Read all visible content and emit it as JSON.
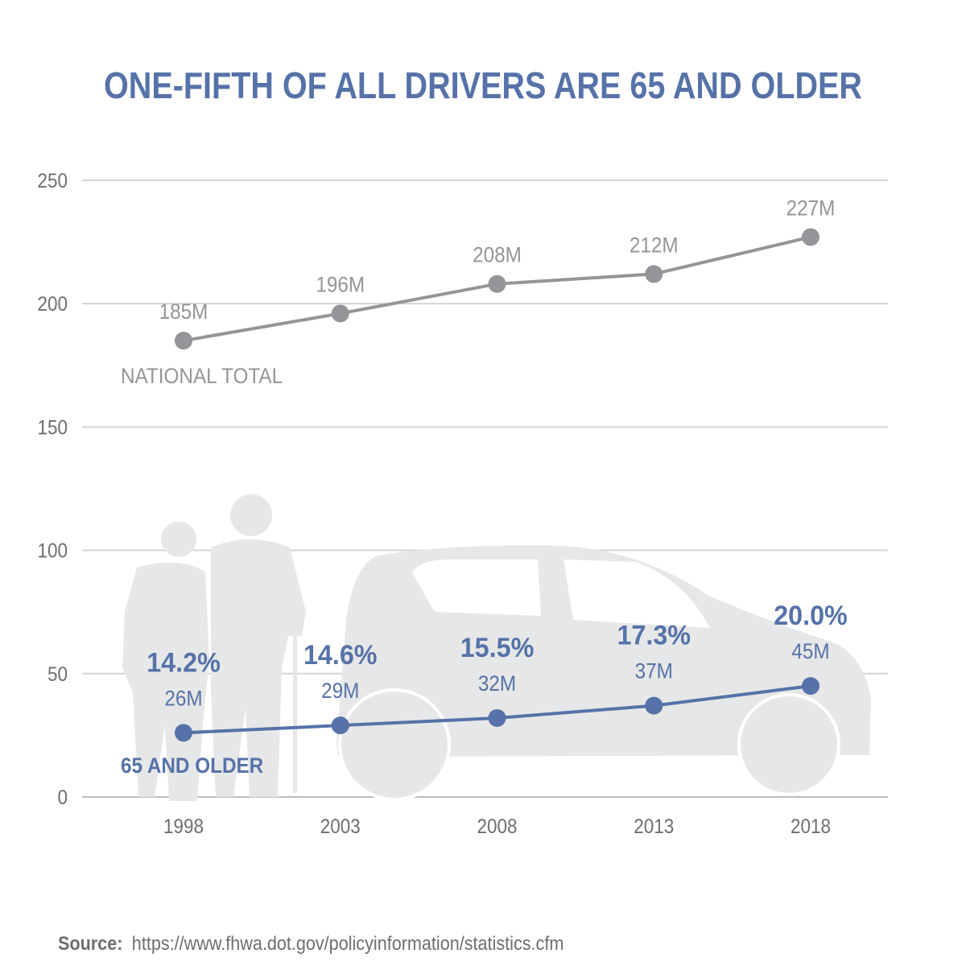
{
  "title": "ONE-FIFTH OF ALL DRIVERS ARE 65 AND OLDER",
  "source_label": "Source:",
  "source_url": "https://www.fhwa.dot.gov/policyinformation/statistics.cfm",
  "colors": {
    "blue": "#5672a8",
    "gray": "#939598",
    "silhouette": "#e6e7e8",
    "text": "#6d6e71",
    "grid": "#d1d3d4"
  },
  "chart_data": {
    "type": "line",
    "title": "ONE-FIFTH OF ALL DRIVERS ARE 65 AND OLDER",
    "xlabel": "",
    "ylabel": "",
    "x": [
      "1998",
      "2003",
      "2008",
      "2013",
      "2018"
    ],
    "ylim": [
      0,
      250
    ],
    "yticks": [
      "0",
      "50",
      "100",
      "150",
      "200",
      "250"
    ],
    "grid": true,
    "series": [
      {
        "name": "NATIONAL TOTAL",
        "values": [
          185,
          196,
          208,
          212,
          227
        ],
        "labels": [
          "185M",
          "196M",
          "208M",
          "212M",
          "227M"
        ],
        "color": "#939598"
      },
      {
        "name": "65 AND OLDER",
        "values": [
          26,
          29,
          32,
          37,
          45
        ],
        "labels": [
          "26M",
          "29M",
          "32M",
          "37M",
          "45M"
        ],
        "percent_labels": [
          "14.2%",
          "14.6%",
          "15.5%",
          "17.3%",
          "20.0%"
        ],
        "color": "#5672a8"
      }
    ]
  }
}
